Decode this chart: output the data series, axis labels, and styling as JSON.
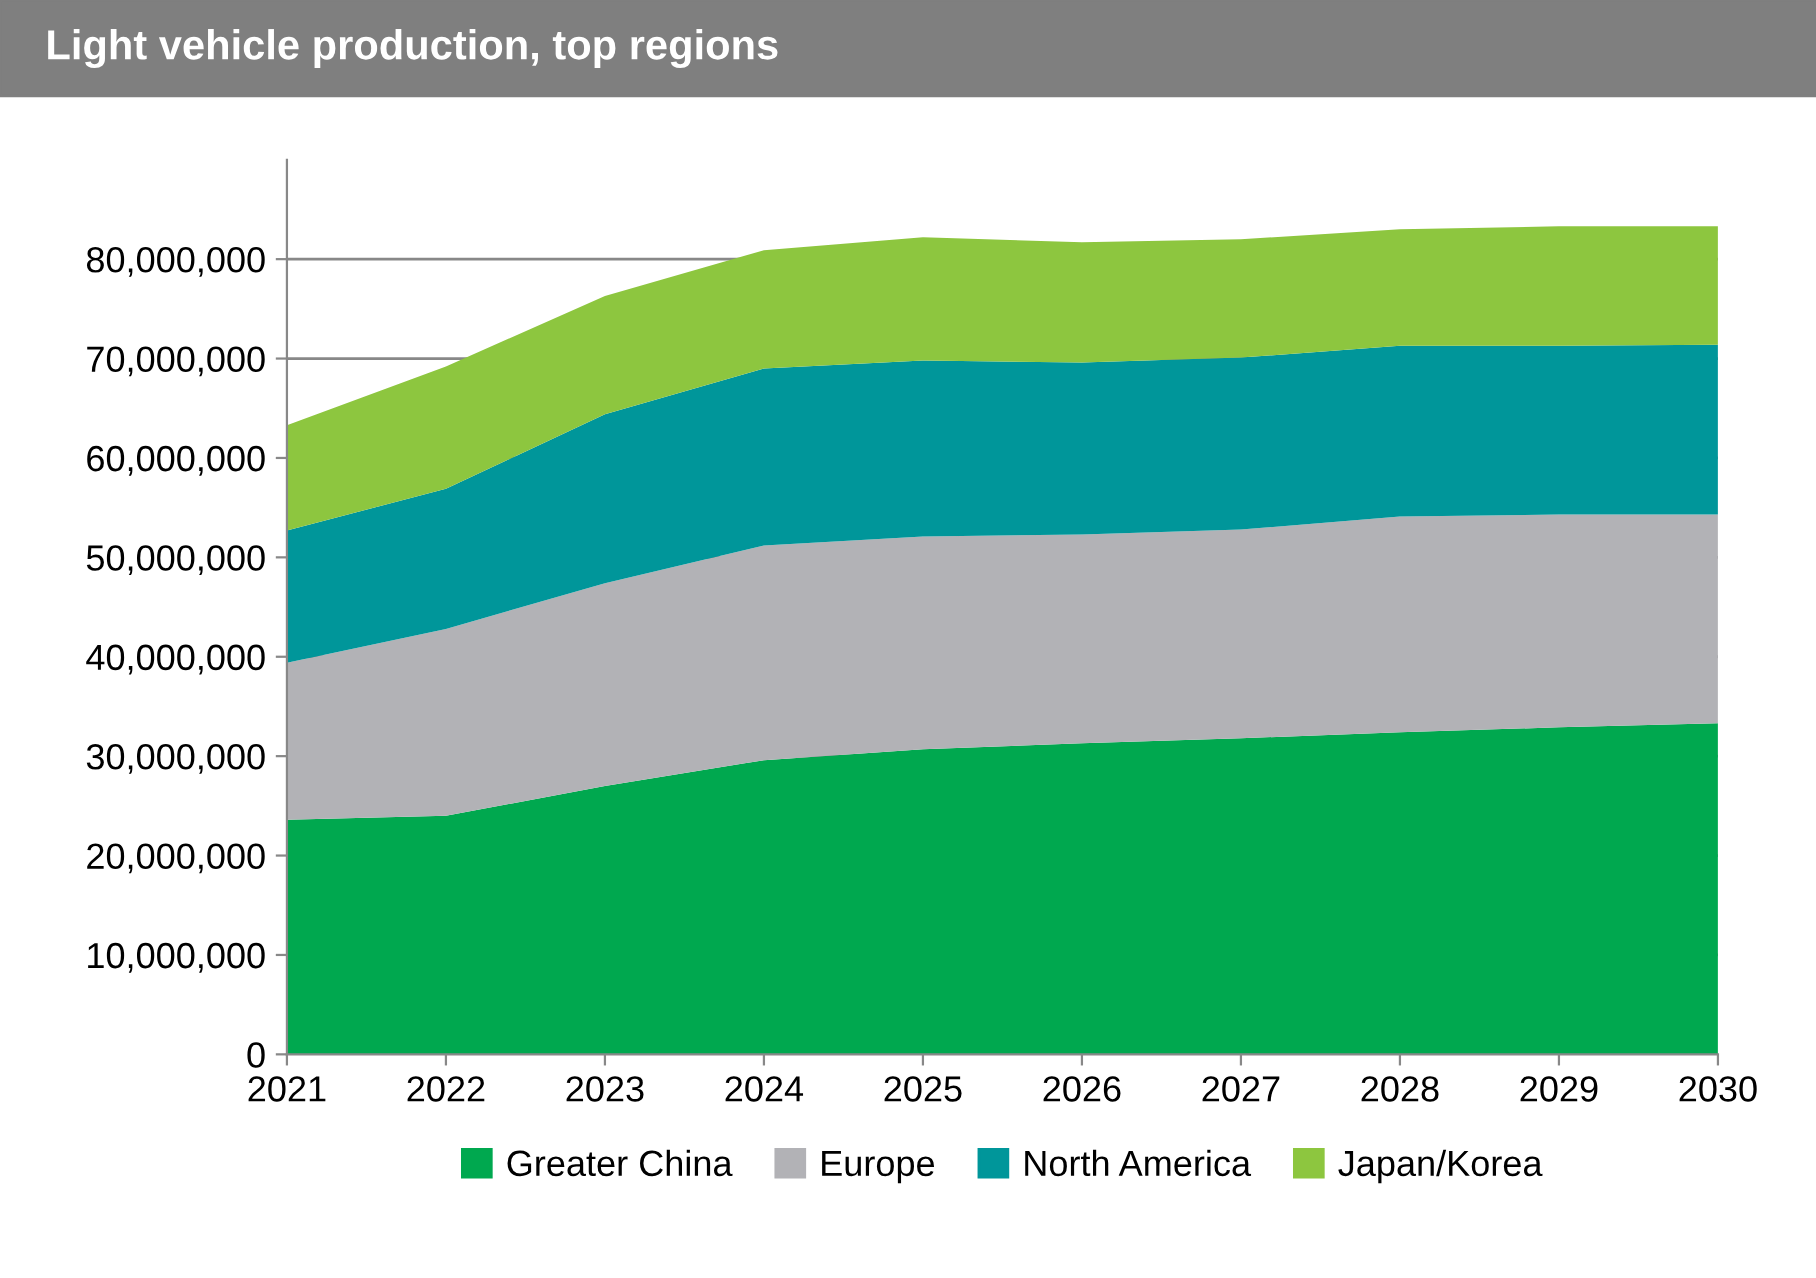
{
  "chart_data": {
    "type": "area",
    "stacked": true,
    "title": "Light vehicle production, top regions",
    "x": [
      2021,
      2022,
      2023,
      2024,
      2025,
      2026,
      2027,
      2028,
      2029,
      2030
    ],
    "series": [
      {
        "name": "Greater China",
        "color": "#00a84f",
        "values": [
          23600000,
          24000000,
          27000000,
          29600000,
          30700000,
          31300000,
          31800000,
          32400000,
          32900000,
          33300000
        ]
      },
      {
        "name": "Europe",
        "color": "#b2b2b6",
        "values": [
          15800000,
          18800000,
          20400000,
          21600000,
          21400000,
          21000000,
          21000000,
          21700000,
          21400000,
          21000000
        ]
      },
      {
        "name": "North America",
        "color": "#00969a",
        "values": [
          13300000,
          14100000,
          17000000,
          17800000,
          17700000,
          17300000,
          17300000,
          17200000,
          17000000,
          17100000
        ]
      },
      {
        "name": "Japan/Korea",
        "color": "#8dc63f",
        "values": [
          10600000,
          12300000,
          11900000,
          11900000,
          12400000,
          12100000,
          11900000,
          11700000,
          12000000,
          11900000
        ]
      }
    ],
    "xlim": [
      2021,
      2030
    ],
    "xticks": [
      2021,
      2022,
      2023,
      2024,
      2025,
      2026,
      2027,
      2028,
      2029,
      2030
    ],
    "ylim": [
      0,
      90000000
    ],
    "yticks": [
      {
        "value": 0,
        "label": "0"
      },
      {
        "value": 10000000,
        "label": "10,000,000"
      },
      {
        "value": 20000000,
        "label": "20,000,000"
      },
      {
        "value": 30000000,
        "label": "30,000,000"
      },
      {
        "value": 40000000,
        "label": "40,000,000"
      },
      {
        "value": 50000000,
        "label": "50,000,000"
      },
      {
        "value": 60000000,
        "label": "60,000,000"
      },
      {
        "value": 70000000,
        "label": "70,000,000"
      },
      {
        "value": 80000000,
        "label": "80,000,000"
      }
    ],
    "grid": "y",
    "legend": "bottom"
  }
}
